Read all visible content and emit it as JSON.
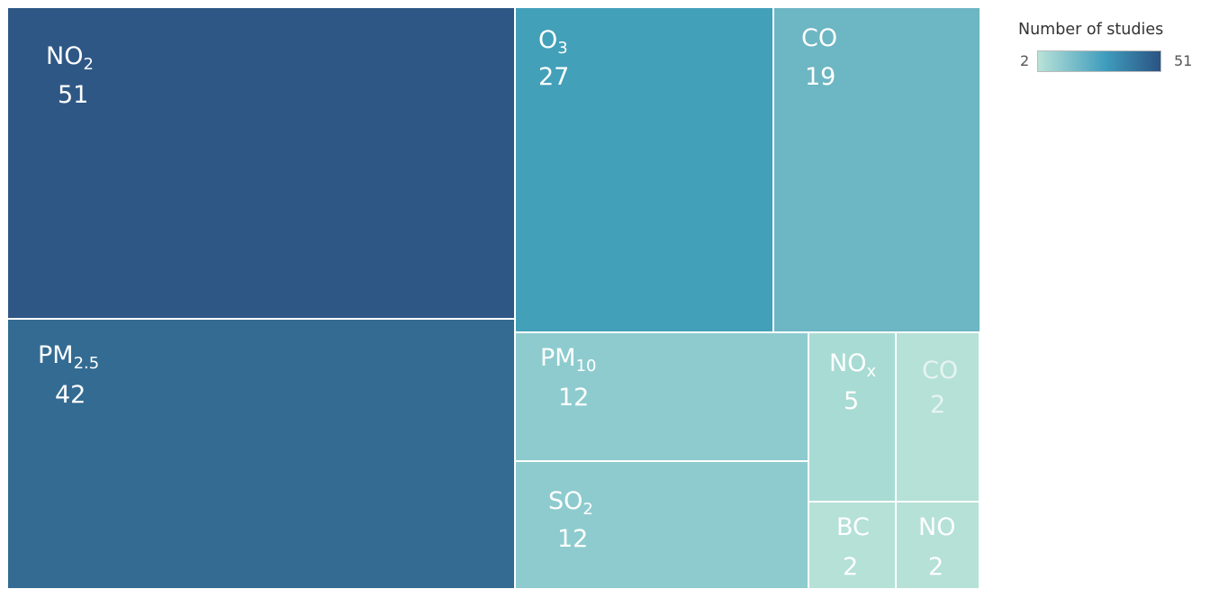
{
  "chart_data": {
    "type": "treemap",
    "legend": {
      "title": "Number of studies",
      "min_label": "2",
      "max_label": "51",
      "color_min": "#b9e2d8",
      "color_mid": "#3f9dbd",
      "color_max": "#2b5383",
      "placement": "top-right"
    },
    "items": [
      {
        "label": "NO",
        "sub": "2",
        "value": 51,
        "value_label": "51",
        "color": "#2e5785"
      },
      {
        "label": "PM",
        "sub": "2.5",
        "value": 42,
        "value_label": "42",
        "color": "#336b92"
      },
      {
        "label": "O",
        "sub": "3",
        "value": 27,
        "value_label": "27",
        "color": "#43a0b9"
      },
      {
        "label": "CO",
        "sub": "",
        "value": 19,
        "value_label": "19",
        "color": "#6db6c3"
      },
      {
        "label": "PM",
        "sub": "10",
        "value": 12,
        "value_label": "12",
        "color": "#8ecbce"
      },
      {
        "label": "SO",
        "sub": "2",
        "value": 12,
        "value_label": "12",
        "color": "#8ecbce"
      },
      {
        "label": "NO",
        "sub": "x",
        "value": 5,
        "value_label": "5",
        "color": "#a8dbd3"
      },
      {
        "label": "CO",
        "sub": "",
        "value": 2,
        "value_label": "2",
        "color": "#b5e1d7"
      },
      {
        "label": "BC",
        "sub": "",
        "value": 2,
        "value_label": "2",
        "color": "#b5e1d7"
      },
      {
        "label": "NO",
        "sub": "",
        "value": 2,
        "value_label": "2",
        "color": "#b5e1d7"
      }
    ]
  }
}
